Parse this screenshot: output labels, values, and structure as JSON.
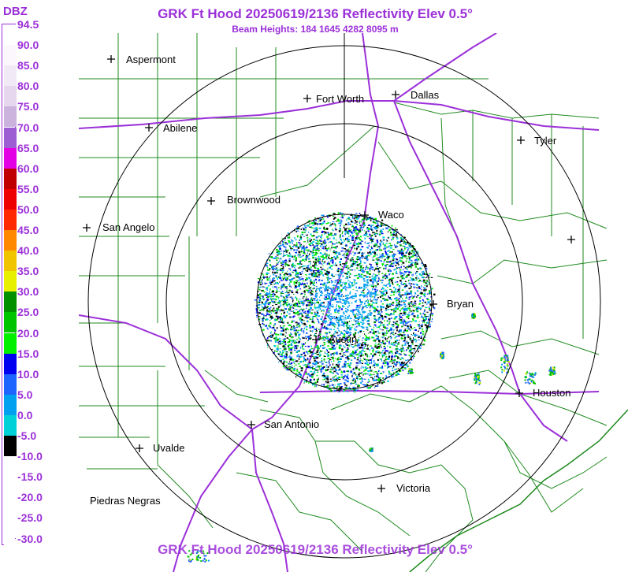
{
  "header": {
    "title": "GRK Ft Hood 20250619/2136 Reflectivity Elev 0.5°",
    "subtitle": "Beam Heights: 184 1645 4282 8095 m",
    "footer_title": "GRK Ft Hood 20250619/2136 Reflectivity Elev 0.5°"
  },
  "legend": {
    "unit": "DBZ",
    "entries": [
      {
        "label": "94.5",
        "color": "#ffffff"
      },
      {
        "label": "90.0",
        "color": "#fbf7fc"
      },
      {
        "label": "85.0",
        "color": "#f2e9f6"
      },
      {
        "label": "80.0",
        "color": "#e6d6ee"
      },
      {
        "label": "75.0",
        "color": "#ccb3dd"
      },
      {
        "label": "70.0",
        "color": "#9d5ed4"
      },
      {
        "label": "65.0",
        "color": "#e400e4"
      },
      {
        "label": "60.0",
        "color": "#c00000"
      },
      {
        "label": "55.0",
        "color": "#ee0000"
      },
      {
        "label": "50.0",
        "color": "#ff2800"
      },
      {
        "label": "45.0",
        "color": "#ff8800"
      },
      {
        "label": "40.0",
        "color": "#f0c400"
      },
      {
        "label": "35.0",
        "color": "#e6f000"
      },
      {
        "label": "30.0",
        "color": "#009000"
      },
      {
        "label": "25.0",
        "color": "#00c400"
      },
      {
        "label": "20.0",
        "color": "#00f000"
      },
      {
        "label": "15.0",
        "color": "#0000f0"
      },
      {
        "label": "10.0",
        "color": "#1e64ff"
      },
      {
        "label": "5.0",
        "color": "#00a0f0"
      },
      {
        "label": "0.0",
        "color": "#00d0d8"
      },
      {
        "label": "-5.0",
        "color": "#000000"
      },
      {
        "label": "-10.0",
        "color": "#ffffff"
      },
      {
        "label": "-15.0",
        "color": "#ffffff"
      },
      {
        "label": "-20.0",
        "color": "#ffffff"
      },
      {
        "label": "-25.0",
        "color": "#ffffff"
      },
      {
        "label": "-30.0",
        "color": "#ffffff"
      }
    ]
  },
  "map": {
    "colors": {
      "county_lines": "#1f8a1f",
      "highways": "#9b30d8",
      "range_rings": "#000000",
      "city_marker": "#000000"
    },
    "cities": [
      {
        "name": "Aspermont"
      },
      {
        "name": "Abilene"
      },
      {
        "name": "Fort Worth"
      },
      {
        "name": "Dallas"
      },
      {
        "name": "Tyler"
      },
      {
        "name": "Brownwood"
      },
      {
        "name": "San Angelo"
      },
      {
        "name": "Waco"
      },
      {
        "name": "Bryan"
      },
      {
        "name": "Austin"
      },
      {
        "name": "Houston"
      },
      {
        "name": "San Antonio"
      },
      {
        "name": "Uvalde"
      },
      {
        "name": "Victoria"
      },
      {
        "name": "Piedras Negras"
      }
    ]
  }
}
